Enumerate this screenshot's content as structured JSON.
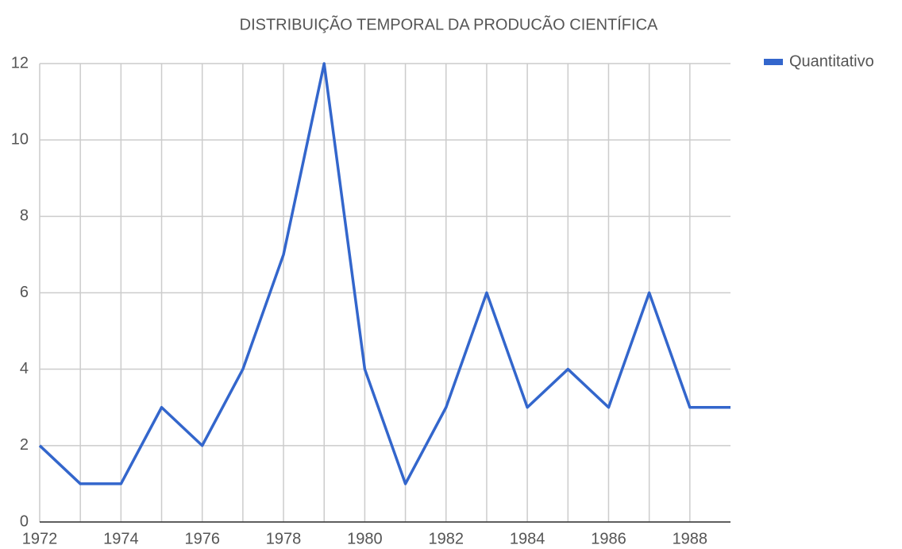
{
  "chart_data": {
    "type": "line",
    "title": "DISTRIBUIÇÃO TEMPORAL DA PRODUCÃO CIENTÍFICA",
    "x": [
      1972,
      1973,
      1974,
      1975,
      1976,
      1977,
      1978,
      1979,
      1980,
      1981,
      1982,
      1983,
      1984,
      1985,
      1986,
      1987,
      1988,
      1989
    ],
    "series": [
      {
        "name": "Quantitativo",
        "color": "#3366cc",
        "values": [
          2,
          1,
          1,
          3,
          2,
          4,
          7,
          12,
          4,
          1,
          3,
          6,
          3,
          4,
          3,
          6,
          3,
          3
        ]
      }
    ],
    "xlim": [
      1972,
      1989
    ],
    "xticks": [
      1972,
      1974,
      1976,
      1978,
      1980,
      1982,
      1984,
      1986,
      1988
    ],
    "xminorticks": [
      1973,
      1975,
      1977,
      1979,
      1981,
      1983,
      1985,
      1987
    ],
    "ylim": [
      0,
      12
    ],
    "yticks": [
      0,
      2,
      4,
      6,
      8,
      10,
      12
    ],
    "grid": true,
    "legend": "right"
  }
}
